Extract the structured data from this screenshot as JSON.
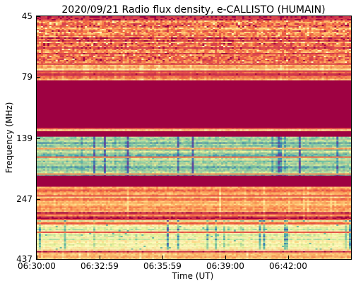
{
  "chart_data": {
    "type": "heatmap",
    "title": "2020/09/21  Radio flux density, e-CALLISTO (HUMAIN)",
    "xlabel": "Time (UT)",
    "ylabel": "Frequency (MHz)",
    "x_ticks": [
      "06:30:00",
      "06:32:59",
      "06:35:59",
      "06:39:00",
      "06:42:00"
    ],
    "y_ticks": [
      "45",
      "79",
      "139",
      "247",
      "437"
    ],
    "colormap": "Spectral",
    "colors": {
      "background_band": "#9e0142",
      "high": "#5e4fa2",
      "mid": "#fee08b",
      "pale": "#ffffbf",
      "teal": "#66c2a5"
    },
    "frequency_bands": [
      {
        "from_mhz": 45,
        "to_mhz": 70,
        "intensity": 0.2,
        "texture": "speckled"
      },
      {
        "from_mhz": 70,
        "to_mhz": 82,
        "intensity": 0.3,
        "texture": "streaks"
      },
      {
        "from_mhz": 82,
        "to_mhz": 128,
        "intensity": 0.0,
        "texture": "flat"
      },
      {
        "from_mhz": 128,
        "to_mhz": 132,
        "intensity": 0.35,
        "texture": "streaks"
      },
      {
        "from_mhz": 132,
        "to_mhz": 139,
        "intensity": 0.0,
        "texture": "flat"
      },
      {
        "from_mhz": 139,
        "to_mhz": 200,
        "intensity": 0.7,
        "texture": "vertical_bursts"
      },
      {
        "from_mhz": 200,
        "to_mhz": 222,
        "intensity": 0.0,
        "texture": "flat"
      },
      {
        "from_mhz": 222,
        "to_mhz": 300,
        "intensity": 0.3,
        "texture": "streaks"
      },
      {
        "from_mhz": 300,
        "to_mhz": 400,
        "intensity": 0.55,
        "texture": "vertical_bursts"
      },
      {
        "from_mhz": 400,
        "to_mhz": 437,
        "intensity": 0.35,
        "texture": "streaks"
      }
    ]
  }
}
